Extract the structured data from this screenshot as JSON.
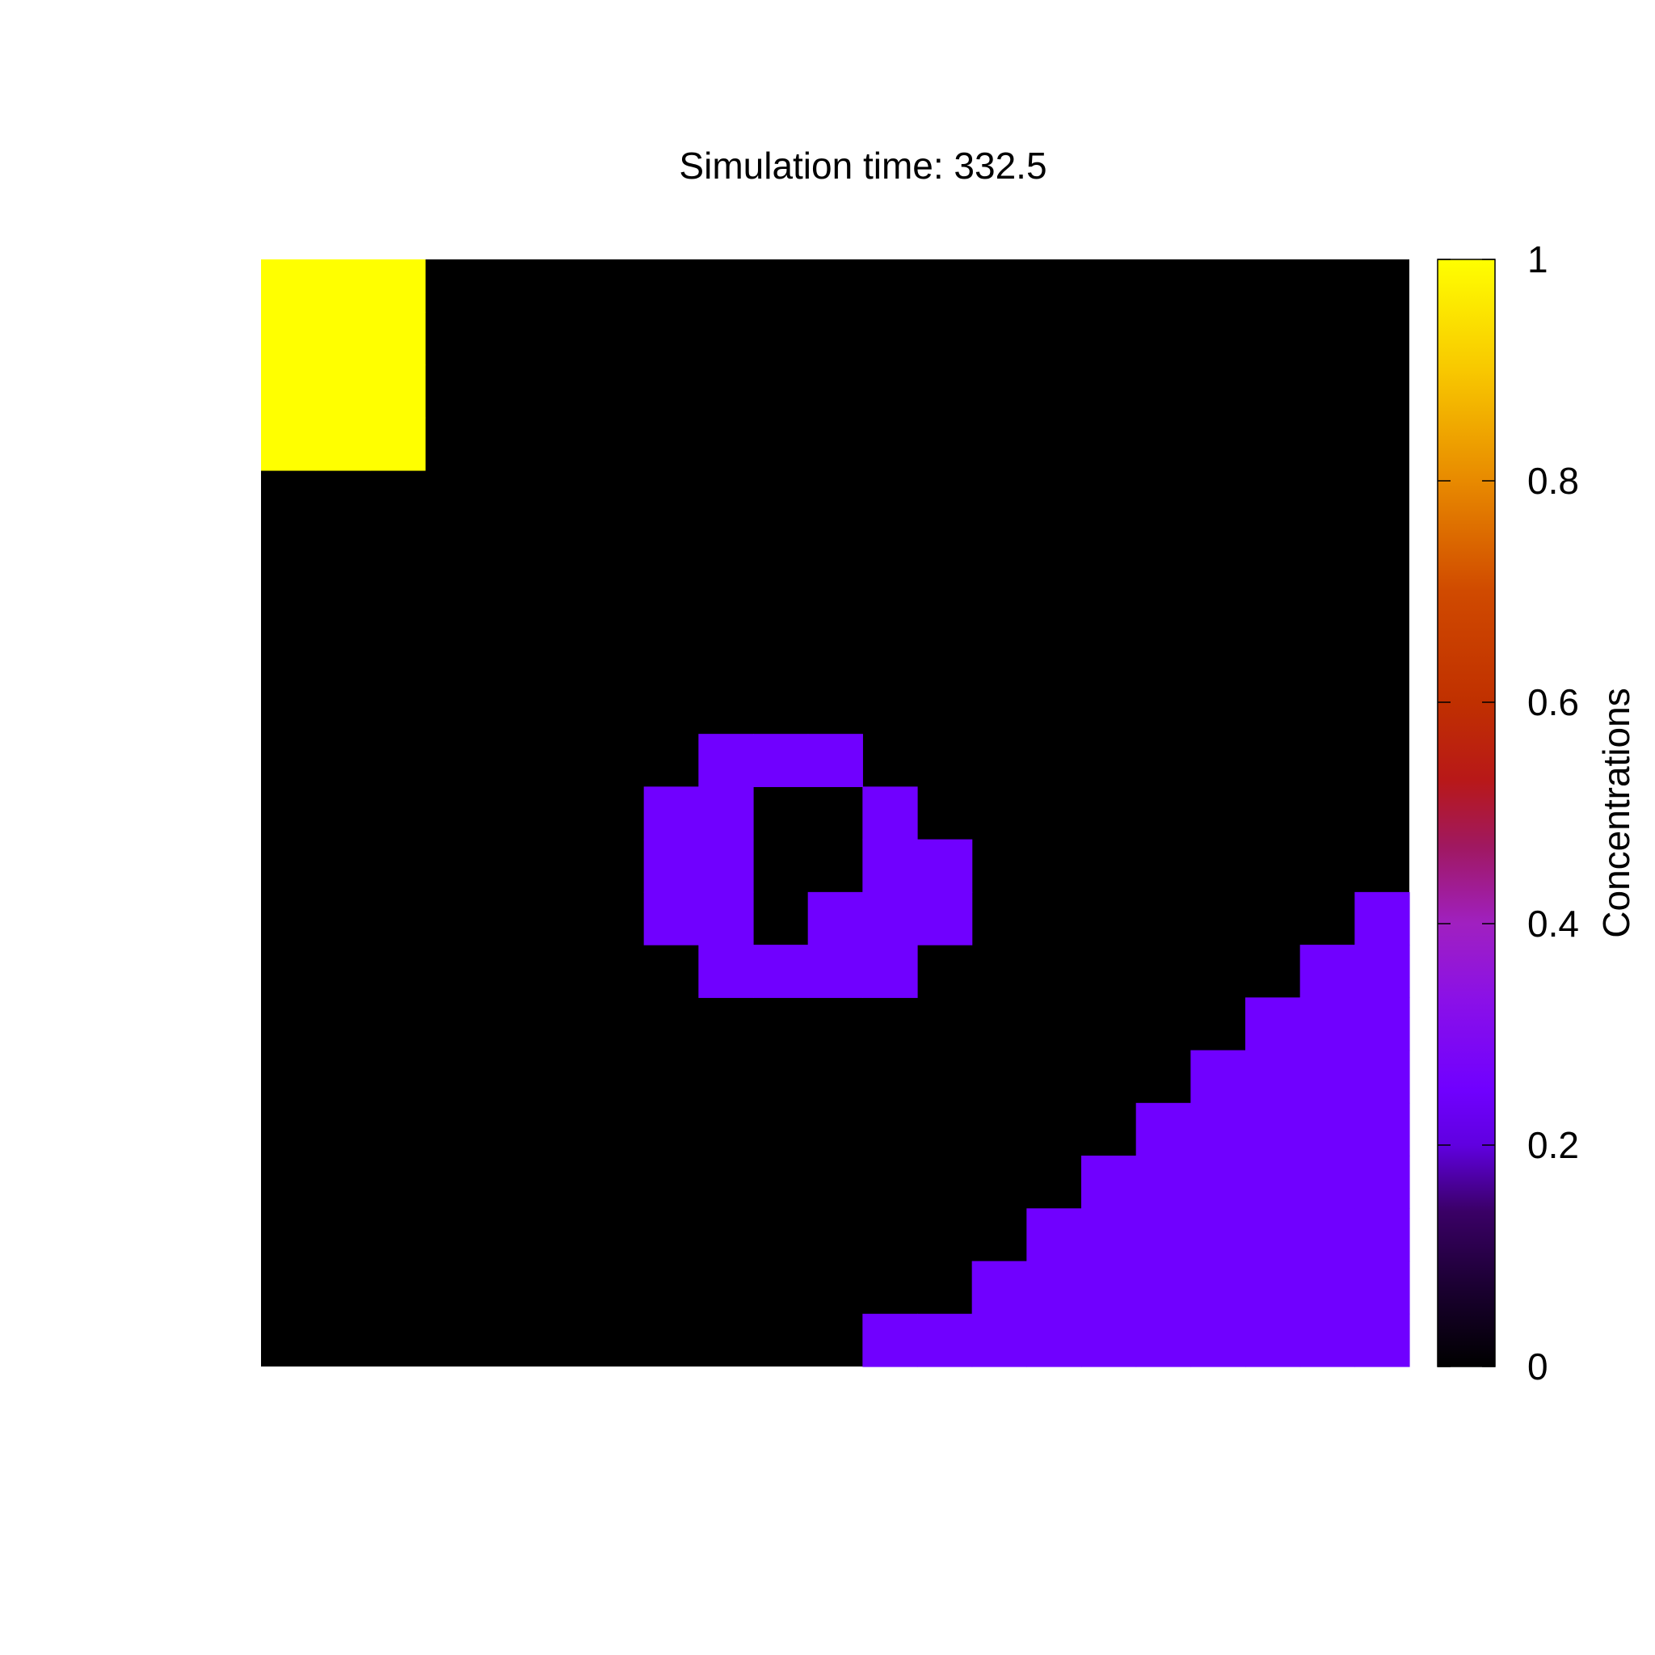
{
  "chart_data": {
    "type": "heatmap",
    "title": "Simulation time: 332.5",
    "colorbar": {
      "label": "Concentrations",
      "range": [
        0,
        1
      ],
      "ticks": [
        "0",
        "0.2",
        "0.4",
        "0.6",
        "0.8",
        "1"
      ],
      "tick_values": [
        0,
        0.2,
        0.4,
        0.6,
        0.8,
        1
      ],
      "palette": [
        "#000000",
        "#3a0066",
        "#7000ff",
        "#a020c0",
        "#b81818",
        "#d04a00",
        "#e88a00",
        "#f8c800",
        "#ffff00"
      ]
    },
    "grid": {
      "rows": 21,
      "cols": 21,
      "background_value": 0,
      "regions": [
        {
          "name": "yellow-block",
          "value": 1.0,
          "cells": [
            [
              0,
              0
            ],
            [
              0,
              1
            ],
            [
              0,
              2
            ],
            [
              1,
              0
            ],
            [
              1,
              1
            ],
            [
              1,
              2
            ],
            [
              2,
              0
            ],
            [
              2,
              1
            ],
            [
              2,
              2
            ],
            [
              3,
              0
            ],
            [
              3,
              1
            ],
            [
              3,
              2
            ]
          ]
        },
        {
          "name": "ring",
          "value": 0.25,
          "cells": [
            [
              9,
              8
            ],
            [
              9,
              9
            ],
            [
              9,
              10
            ],
            [
              10,
              7
            ],
            [
              10,
              8
            ],
            [
              10,
              11
            ],
            [
              11,
              7
            ],
            [
              11,
              8
            ],
            [
              11,
              11
            ],
            [
              11,
              12
            ],
            [
              12,
              7
            ],
            [
              12,
              8
            ],
            [
              12,
              10
            ],
            [
              12,
              11
            ],
            [
              12,
              12
            ],
            [
              13,
              8
            ],
            [
              13,
              9
            ],
            [
              13,
              10
            ],
            [
              13,
              11
            ]
          ]
        },
        {
          "name": "lower-right-wedge",
          "value": 0.25,
          "cells": [
            [
              12,
              20
            ],
            [
              13,
              19
            ],
            [
              13,
              20
            ],
            [
              14,
              18
            ],
            [
              14,
              19
            ],
            [
              14,
              20
            ],
            [
              15,
              17
            ],
            [
              15,
              18
            ],
            [
              15,
              19
            ],
            [
              15,
              20
            ],
            [
              16,
              16
            ],
            [
              16,
              17
            ],
            [
              16,
              18
            ],
            [
              16,
              19
            ],
            [
              16,
              20
            ],
            [
              17,
              15
            ],
            [
              17,
              16
            ],
            [
              17,
              17
            ],
            [
              17,
              18
            ],
            [
              17,
              19
            ],
            [
              17,
              20
            ],
            [
              18,
              14
            ],
            [
              18,
              15
            ],
            [
              18,
              16
            ],
            [
              18,
              17
            ],
            [
              18,
              18
            ],
            [
              18,
              19
            ],
            [
              18,
              20
            ],
            [
              19,
              13
            ],
            [
              19,
              14
            ],
            [
              19,
              15
            ],
            [
              19,
              16
            ],
            [
              19,
              17
            ],
            [
              19,
              18
            ],
            [
              19,
              19
            ],
            [
              19,
              20
            ],
            [
              20,
              11
            ],
            [
              20,
              12
            ],
            [
              20,
              13
            ],
            [
              20,
              14
            ],
            [
              20,
              15
            ],
            [
              20,
              16
            ],
            [
              20,
              17
            ],
            [
              20,
              18
            ],
            [
              20,
              19
            ],
            [
              20,
              20
            ]
          ]
        }
      ]
    }
  }
}
